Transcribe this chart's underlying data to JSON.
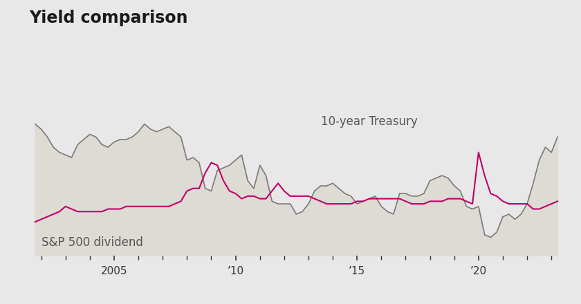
{
  "title": "Yield comparison",
  "background_color": "#e8e8e8",
  "plot_bg_color": "#e8e8e8",
  "fill_color": "#dedad4",
  "treasury_color": "#7a7a7a",
  "dividend_color": "#c0006a",
  "treasury_label": "10-year Treasury",
  "dividend_label": "S&P 500 dividend",
  "x_tick_labels": [
    "2005",
    "’10",
    "’15",
    "’20"
  ],
  "x_tick_positions": [
    2005,
    2010,
    2015,
    2020
  ],
  "xlim": [
    2001.5,
    2023.5
  ],
  "ylim": [
    0,
    8.5
  ],
  "years": [
    2001.75,
    2002.0,
    2002.25,
    2002.5,
    2002.75,
    2003.0,
    2003.25,
    2003.5,
    2003.75,
    2004.0,
    2004.25,
    2004.5,
    2004.75,
    2005.0,
    2005.25,
    2005.5,
    2005.75,
    2006.0,
    2006.25,
    2006.5,
    2006.75,
    2007.0,
    2007.25,
    2007.5,
    2007.75,
    2008.0,
    2008.25,
    2008.5,
    2008.75,
    2009.0,
    2009.25,
    2009.5,
    2009.75,
    2010.0,
    2010.25,
    2010.5,
    2010.75,
    2011.0,
    2011.25,
    2011.5,
    2011.75,
    2012.0,
    2012.25,
    2012.5,
    2012.75,
    2013.0,
    2013.25,
    2013.5,
    2013.75,
    2014.0,
    2014.25,
    2014.5,
    2014.75,
    2015.0,
    2015.25,
    2015.5,
    2015.75,
    2016.0,
    2016.25,
    2016.5,
    2016.75,
    2017.0,
    2017.25,
    2017.5,
    2017.75,
    2018.0,
    2018.25,
    2018.5,
    2018.75,
    2019.0,
    2019.25,
    2019.5,
    2019.75,
    2020.0,
    2020.25,
    2020.5,
    2020.75,
    2021.0,
    2021.25,
    2021.5,
    2021.75,
    2022.0,
    2022.25,
    2022.5,
    2022.75,
    2023.0,
    2023.25
  ],
  "treasury": [
    5.1,
    4.9,
    4.6,
    4.2,
    4.0,
    3.9,
    3.8,
    4.3,
    4.5,
    4.7,
    4.6,
    4.3,
    4.2,
    4.4,
    4.5,
    4.5,
    4.6,
    4.8,
    5.1,
    4.9,
    4.8,
    4.9,
    5.0,
    4.8,
    4.6,
    3.7,
    3.8,
    3.6,
    2.6,
    2.5,
    3.3,
    3.4,
    3.5,
    3.7,
    3.9,
    2.9,
    2.6,
    3.5,
    3.1,
    2.1,
    2.0,
    2.0,
    2.0,
    1.6,
    1.7,
    2.0,
    2.5,
    2.7,
    2.7,
    2.8,
    2.6,
    2.4,
    2.3,
    2.0,
    2.1,
    2.2,
    2.3,
    1.9,
    1.7,
    1.6,
    2.4,
    2.4,
    2.3,
    2.3,
    2.4,
    2.9,
    3.0,
    3.1,
    3.0,
    2.7,
    2.5,
    1.9,
    1.8,
    1.9,
    0.8,
    0.7,
    0.9,
    1.5,
    1.6,
    1.4,
    1.6,
    2.0,
    2.8,
    3.7,
    4.2,
    4.0,
    4.6
  ],
  "dividend": [
    1.3,
    1.4,
    1.5,
    1.6,
    1.7,
    1.9,
    1.8,
    1.7,
    1.7,
    1.7,
    1.7,
    1.7,
    1.8,
    1.8,
    1.8,
    1.9,
    1.9,
    1.9,
    1.9,
    1.9,
    1.9,
    1.9,
    1.9,
    2.0,
    2.1,
    2.5,
    2.6,
    2.6,
    3.2,
    3.6,
    3.5,
    2.9,
    2.5,
    2.4,
    2.2,
    2.3,
    2.3,
    2.2,
    2.2,
    2.5,
    2.8,
    2.5,
    2.3,
    2.3,
    2.3,
    2.3,
    2.2,
    2.1,
    2.0,
    2.0,
    2.0,
    2.0,
    2.0,
    2.1,
    2.1,
    2.2,
    2.2,
    2.2,
    2.2,
    2.2,
    2.2,
    2.1,
    2.0,
    2.0,
    2.0,
    2.1,
    2.1,
    2.1,
    2.2,
    2.2,
    2.2,
    2.1,
    2.0,
    4.0,
    3.1,
    2.4,
    2.3,
    2.1,
    2.0,
    2.0,
    2.0,
    2.0,
    1.8,
    1.8,
    1.9,
    2.0,
    2.1
  ]
}
